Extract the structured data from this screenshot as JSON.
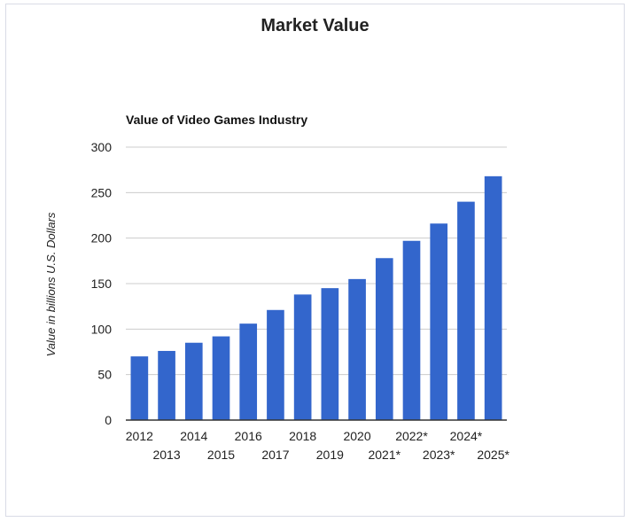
{
  "page": {
    "title": "Market Value"
  },
  "chart_data": {
    "type": "bar",
    "title": "Value of Video Games Industry",
    "xlabel": "",
    "ylabel": "Value in billions U.S. Dollars",
    "categories": [
      "2012",
      "2013",
      "2014",
      "2015",
      "2016",
      "2017",
      "2018",
      "2019",
      "2020",
      "2021*",
      "2022*",
      "2023*",
      "2024*",
      "2025*"
    ],
    "values": [
      70,
      76,
      85,
      92,
      106,
      121,
      138,
      145,
      155,
      178,
      197,
      216,
      240,
      268
    ],
    "ylim": [
      0,
      300
    ],
    "yticks": [
      0,
      50,
      100,
      150,
      200,
      250,
      300
    ],
    "grid": true,
    "legend": "none",
    "colors": {
      "bar": "#3366cc",
      "grid": "#cccccc",
      "axis": "#333333"
    }
  }
}
